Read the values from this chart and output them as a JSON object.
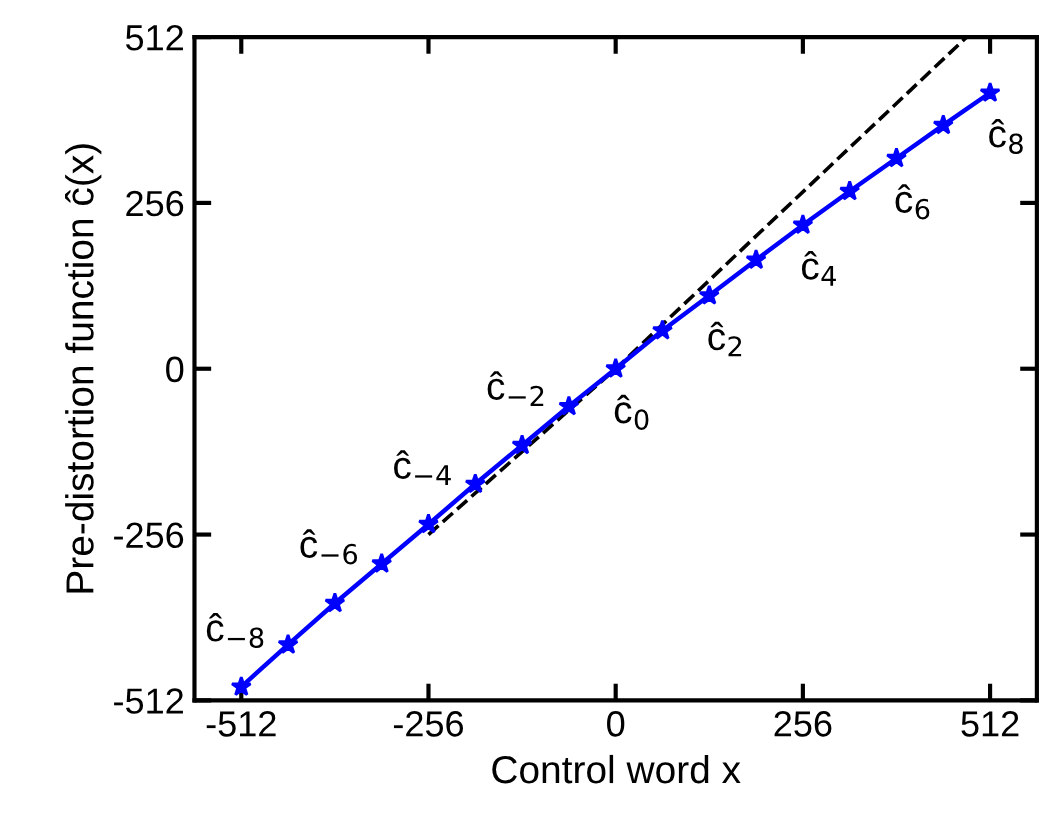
{
  "chart_data": {
    "type": "line",
    "xlabel": "Control word x",
    "ylabel": "Pre-distortion function ĉ(x)",
    "xlim": [
      -576,
      576
    ],
    "ylim": [
      -512,
      512
    ],
    "xticks": [
      -512,
      -256,
      0,
      256,
      512
    ],
    "yticks": [
      -512,
      -256,
      0,
      256,
      512
    ],
    "grid": false,
    "legend": false,
    "series": [
      {
        "color": "#000000",
        "line_style": "dashed",
        "marker": "none",
        "x": [
          -256,
          0,
          480
        ],
        "values": [
          -256,
          0,
          512
        ]
      },
      {
        "color": "#0000ff",
        "line_style": "solid",
        "marker": "star",
        "x": [
          -512,
          -448,
          -384,
          -320,
          -256,
          -192,
          -128,
          -64,
          0,
          64,
          128,
          192,
          256,
          320,
          384,
          448,
          512
        ],
        "values": [
          -491,
          -426,
          -362,
          -301,
          -240,
          -178,
          -118,
          -58,
          0,
          59,
          113,
          168,
          222,
          274,
          325,
          376,
          426
        ]
      }
    ],
    "annotations": [
      {
        "text": "ĉ$_{−8}$",
        "x": -512,
        "y": -491
      },
      {
        "text": "ĉ$_{−6}$",
        "x": -384,
        "y": -362
      },
      {
        "text": "ĉ$_{−4}$",
        "x": -256,
        "y": -240
      },
      {
        "text": "ĉ$_{−2}$",
        "x": -128,
        "y": -118
      },
      {
        "text": "ĉ$_{0}$",
        "x": 0,
        "y": 0
      },
      {
        "text": "ĉ$_{2}$",
        "x": 128,
        "y": 113
      },
      {
        "text": "ĉ$_{4}$",
        "x": 256,
        "y": 222
      },
      {
        "text": "ĉ$_{6}$",
        "x": 384,
        "y": 325
      },
      {
        "text": "ĉ$_{8}$",
        "x": 512,
        "y": 426
      }
    ]
  }
}
